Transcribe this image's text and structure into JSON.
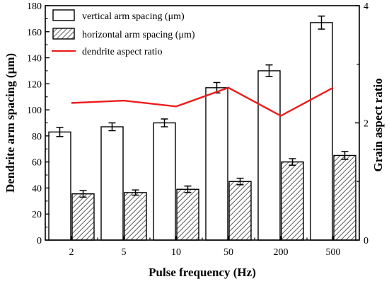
{
  "chart_data": {
    "type": "bar",
    "categories": [
      "2",
      "5",
      "10",
      "50",
      "200",
      "500"
    ],
    "series": [
      {
        "name": "vertical arm spacing (μm)",
        "values": [
          83,
          87,
          90,
          117,
          130,
          167
        ],
        "errors": [
          3.5,
          3,
          3,
          4,
          4.5,
          5
        ],
        "pattern": "open",
        "axis": "left"
      },
      {
        "name": "horizontal arm spacing (μm)",
        "values": [
          35.5,
          36.5,
          39,
          45,
          60,
          65
        ],
        "errors": [
          2.5,
          2,
          2.5,
          2.5,
          2.5,
          3
        ],
        "pattern": "hatched",
        "axis": "left"
      },
      {
        "name": "dendrite aspect ratio",
        "type": "line",
        "values": [
          2.34,
          2.38,
          2.28,
          2.6,
          2.12,
          2.6
        ],
        "axis": "right",
        "color": "#ee1c1c"
      }
    ],
    "xlabel": "Pulse frequency (Hz)",
    "ylabel": "Dendrite arm spacing (μm)",
    "y2label": "Grain aspect ratio",
    "ylim": [
      0,
      180
    ],
    "yticks": [
      "0",
      "20",
      "40",
      "60",
      "80",
      "100",
      "120",
      "140",
      "160",
      "180"
    ],
    "y2lim": [
      0,
      4
    ],
    "y2ticks": [
      "0",
      "2",
      "4"
    ],
    "grid": false,
    "legend_position": "top-left"
  }
}
